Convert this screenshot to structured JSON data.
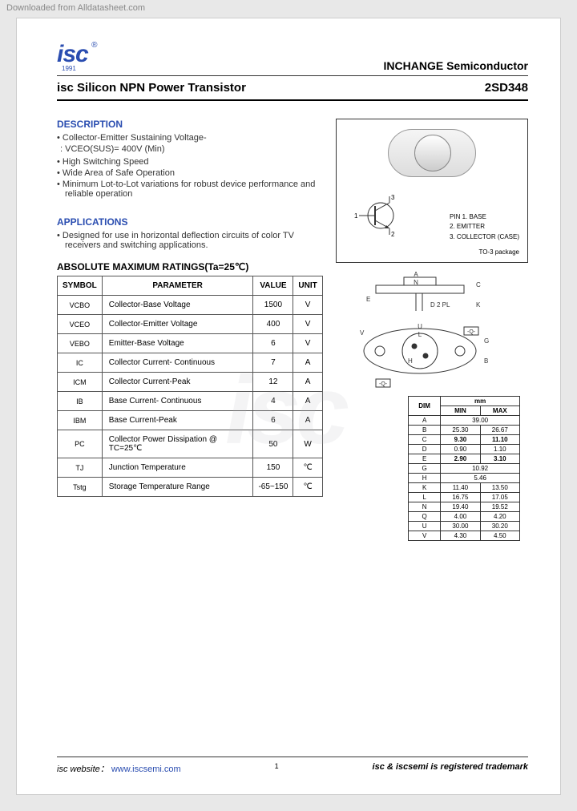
{
  "meta": {
    "download": "Downloaded from Alldatasheet.com"
  },
  "header": {
    "logo_text": "isc",
    "logo_year": "1991",
    "reg_mark": "®",
    "company": "INCHANGE Semiconductor"
  },
  "title": {
    "product": "isc Silicon NPN Power Transistor",
    "part": "2SD348"
  },
  "description": {
    "heading": "DESCRIPTION",
    "items": [
      "Collector-Emitter Sustaining Voltage-",
      "High Switching Speed",
      "Wide Area of Safe Operation",
      "Minimum Lot-to-Lot variations for robust device performance and reliable operation"
    ],
    "sub_line": ": VCEO(SUS)= 400V (Min)"
  },
  "applications": {
    "heading": "APPLICATIONS",
    "items": [
      "Designed for use in horizontal deflection circuits of color TV receivers and switching applications."
    ]
  },
  "package": {
    "pin_header": "PIN",
    "pins": [
      "1. BASE",
      "2. EMITTER",
      "3. COLLECTOR (CASE)"
    ],
    "name": "TO-3 package"
  },
  "ratings": {
    "heading": "ABSOLUTE MAXIMUM RATINGS(Ta=25℃)",
    "columns": [
      "SYMBOL",
      "PARAMETER",
      "VALUE",
      "UNIT"
    ],
    "rows": [
      {
        "sym": "VCBO",
        "param": "Collector-Base Voltage",
        "value": "1500",
        "unit": "V"
      },
      {
        "sym": "VCEO",
        "param": "Collector-Emitter Voltage",
        "value": "400",
        "unit": "V"
      },
      {
        "sym": "VEBO",
        "param": "Emitter-Base Voltage",
        "value": "6",
        "unit": "V"
      },
      {
        "sym": "IC",
        "param": "Collector Current- Continuous",
        "value": "7",
        "unit": "A"
      },
      {
        "sym": "ICM",
        "param": "Collector Current-Peak",
        "value": "12",
        "unit": "A"
      },
      {
        "sym": "IB",
        "param": "Base Current- Continuous",
        "value": "4",
        "unit": "A"
      },
      {
        "sym": "IBM",
        "param": "Base Current-Peak",
        "value": "6",
        "unit": "A"
      },
      {
        "sym": "PC",
        "param": "Collector Power Dissipation @ TC=25℃",
        "value": "50",
        "unit": "W"
      },
      {
        "sym": "TJ",
        "param": "Junction Temperature",
        "value": "150",
        "unit": "℃"
      },
      {
        "sym": "Tstg",
        "param": "Storage Temperature Range",
        "value": "-65~150",
        "unit": "℃"
      }
    ]
  },
  "dimensions": {
    "header": {
      "dim": "DIM",
      "unit": "mm",
      "min": "MIN",
      "max": "MAX"
    },
    "rows": [
      {
        "dim": "A",
        "min": "39.00",
        "max": "",
        "span": true
      },
      {
        "dim": "B",
        "min": "25.30",
        "max": "26.67"
      },
      {
        "dim": "C",
        "min": "9.30",
        "max": "11.10",
        "bold": true
      },
      {
        "dim": "D",
        "min": "0.90",
        "max": "1.10"
      },
      {
        "dim": "E",
        "min": "2.90",
        "max": "3.10",
        "bold": true
      },
      {
        "dim": "G",
        "min": "10.92",
        "max": "",
        "span": true
      },
      {
        "dim": "H",
        "min": "5.46",
        "max": "",
        "span": true
      },
      {
        "dim": "K",
        "min": "11.40",
        "max": "13.50"
      },
      {
        "dim": "L",
        "min": "16.75",
        "max": "17.05"
      },
      {
        "dim": "N",
        "min": "19.40",
        "max": "19.52"
      },
      {
        "dim": "Q",
        "min": "4.00",
        "max": "4.20"
      },
      {
        "dim": "U",
        "min": "30.00",
        "max": "30.20"
      },
      {
        "dim": "V",
        "min": "4.30",
        "max": "4.50"
      }
    ]
  },
  "footer": {
    "site_label": "isc website：",
    "site_url": "www.iscsemi.com",
    "page": "1",
    "trademark": "isc & iscsemi is registered trademark"
  },
  "colors": {
    "brand": "#2a4db0",
    "text": "#333333",
    "border": "#555555",
    "page_bg": "#ffffff",
    "body_bg": "#e8e8e8"
  }
}
